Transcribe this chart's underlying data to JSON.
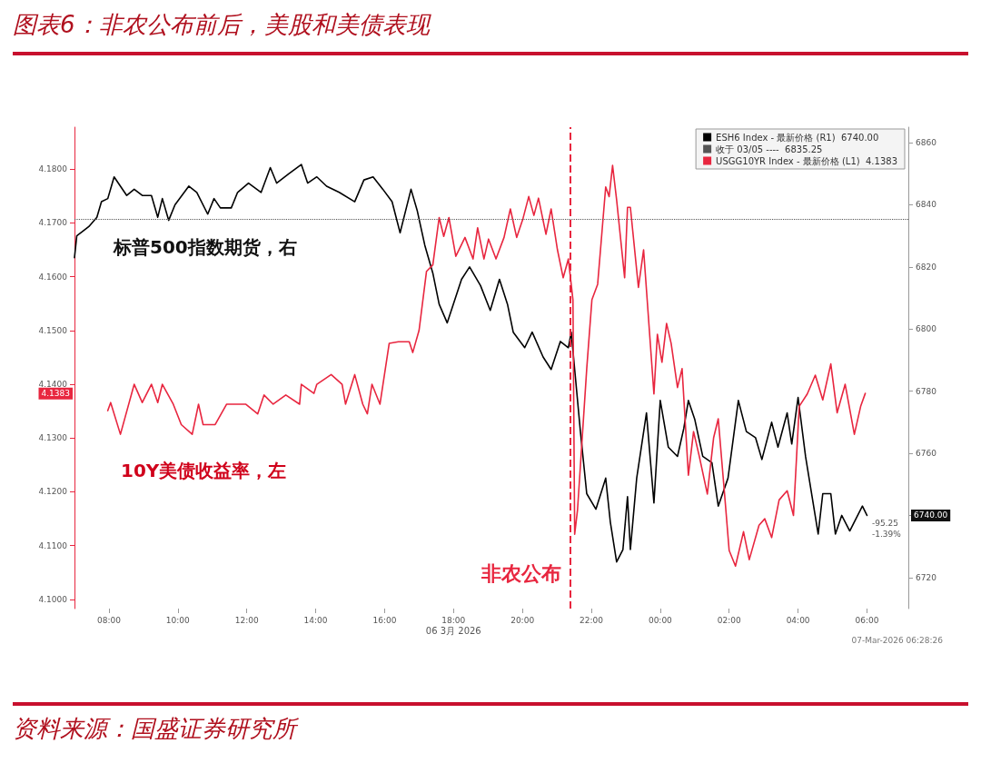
{
  "chart_data": {
    "type": "line",
    "title": "图表6：非农公布前后，美股和美债表现",
    "annotations": [
      "标普500指数期货，右",
      "10Y美债收益率，左",
      "06 3月 2026",
      "4.1383",
      "6740.00",
      "-95.25",
      "-1.39%",
      "07-Mar-2026 06:28:26",
      "资料来源：国盛证券研究所"
    ],
    "xlim": [
      "2026-03-05T07:00",
      "2026-03-06T07:12"
    ],
    "xticks": [
      {
        "value": "2026-03-05T08:00",
        "label": "08:00"
      },
      {
        "value": "2026-03-05T10:00",
        "label": "10:00"
      },
      {
        "value": "2026-03-05T12:00",
        "label": "12:00"
      },
      {
        "value": "2026-03-05T14:00",
        "label": "14:00"
      },
      {
        "value": "2026-03-05T16:00",
        "label": "16:00"
      },
      {
        "value": "2026-03-05T18:00",
        "label": "18:00"
      },
      {
        "value": "2026-03-05T20:00",
        "label": "20:00"
      },
      {
        "value": "2026-03-05T22:00",
        "label": "22:00"
      },
      {
        "value": "2026-03-06T00:00",
        "label": "00:00"
      },
      {
        "value": "2026-03-06T02:00",
        "label": "02:00"
      },
      {
        "value": "2026-03-06T04:00",
        "label": "04:00"
      },
      {
        "value": "2026-03-06T06:00",
        "label": "06:00"
      }
    ],
    "ylim": [
      4.0983,
      4.1878
    ],
    "yticks": [
      {
        "value": 4.1,
        "label": "4.1000"
      },
      {
        "value": 4.11,
        "label": "4.1100"
      },
      {
        "value": 4.12,
        "label": "4.1200"
      },
      {
        "value": 4.13,
        "label": "4.1300"
      },
      {
        "value": 4.14,
        "label": "4.1400"
      },
      {
        "value": 4.15,
        "label": "4.1500"
      },
      {
        "value": 4.16,
        "label": "4.1600"
      },
      {
        "value": 4.17,
        "label": "4.1700"
      },
      {
        "value": 4.18,
        "label": "4.1800"
      }
    ],
    "y2lim": [
      6710,
      6865
    ],
    "y2ticks": [
      6720,
      {
        "value": 6740,
        "label": null
      },
      6760,
      6780,
      6800,
      6820,
      6840,
      6860
    ],
    "legend": "top right",
    "marker": "none",
    "line_style": "solid",
    "ref_lines": [
      {
        "axis": "y2",
        "value": 6835.25,
        "label": "收于 03/05 ----  6835.25",
        "color": "#555555",
        "line_style": "dotted"
      },
      {
        "axis": "x",
        "value": "2026-03-05T21:24",
        "label": "非农公布",
        "color": "#e8263f",
        "line_style": "dashed"
      }
    ],
    "series": [
      {
        "name": "ESH6 Index - 最新价格 (R1)  6740.00",
        "color": "#000000",
        "axis": "y2",
        "x": [
          "2026-03-05T07:00",
          "2026-03-05T07:04",
          "2026-03-05T07:25",
          "2026-03-05T07:39",
          "2026-03-05T07:47",
          "2026-03-05T07:58",
          "2026-03-05T08:09",
          "2026-03-05T08:31",
          "2026-03-05T08:44",
          "2026-03-05T08:58",
          "2026-03-05T09:14",
          "2026-03-05T09:25",
          "2026-03-05T09:33",
          "2026-03-05T09:44",
          "2026-03-05T09:55",
          "2026-03-05T10:19",
          "2026-03-05T10:33",
          "2026-03-05T10:52",
          "2026-03-05T11:03",
          "2026-03-05T11:14",
          "2026-03-05T11:33",
          "2026-03-05T11:44",
          "2026-03-05T12:03",
          "2026-03-05T12:25",
          "2026-03-05T12:41",
          "2026-03-05T12:52",
          "2026-03-05T13:13",
          "2026-03-05T13:35",
          "2026-03-05T13:46",
          "2026-03-05T14:02",
          "2026-03-05T14:19",
          "2026-03-05T14:41",
          "2026-03-05T15:08",
          "2026-03-05T15:24",
          "2026-03-05T15:40",
          "2026-03-05T15:57",
          "2026-03-05T16:13",
          "2026-03-05T16:27",
          "2026-03-05T16:46",
          "2026-03-05T16:57",
          "2026-03-05T17:10",
          "2026-03-05T17:24",
          "2026-03-05T17:35",
          "2026-03-05T17:49",
          "2026-03-05T17:58",
          "2026-03-05T18:14",
          "2026-03-05T18:28",
          "2026-03-05T18:47",
          "2026-03-05T19:04",
          "2026-03-05T19:20",
          "2026-03-05T19:34",
          "2026-03-05T19:44",
          "2026-03-05T20:04",
          "2026-03-05T20:17",
          "2026-03-05T20:36",
          "2026-03-05T20:50",
          "2026-03-05T21:06",
          "2026-03-05T21:20",
          "2026-03-05T21:25",
          "2026-03-05T21:31",
          "2026-03-05T21:41",
          "2026-03-05T21:52",
          "2026-03-05T22:08",
          "2026-03-05T22:25",
          "2026-03-05T22:33",
          "2026-03-05T22:44",
          "2026-03-05T22:55",
          "2026-03-05T23:03",
          "2026-03-05T23:08",
          "2026-03-05T23:19",
          "2026-03-05T23:36",
          "2026-03-05T23:49",
          "2026-03-06T00:00",
          "2026-03-06T00:14",
          "2026-03-06T00:30",
          "2026-03-06T00:41",
          "2026-03-06T00:49",
          "2026-03-06T01:00",
          "2026-03-06T01:14",
          "2026-03-06T01:30",
          "2026-03-06T01:41",
          "2026-03-06T01:58",
          "2026-03-06T02:16",
          "2026-03-06T02:30",
          "2026-03-06T02:46",
          "2026-03-06T02:57",
          "2026-03-06T03:14",
          "2026-03-06T03:25",
          "2026-03-06T03:41",
          "2026-03-06T03:49",
          "2026-03-06T04:00",
          "2026-03-06T04:13",
          "2026-03-06T04:35",
          "2026-03-06T04:43",
          "2026-03-06T04:57",
          "2026-03-06T05:05",
          "2026-03-06T05:16",
          "2026-03-06T05:30",
          "2026-03-06T05:52",
          "2026-03-06T06:00"
        ],
        "values": [
          6823,
          6830,
          6833,
          6836,
          6841,
          6842,
          6849,
          6843,
          6845,
          6843,
          6843,
          6836,
          6842,
          6835,
          6840,
          6846,
          6844,
          6837,
          6842,
          6839,
          6839,
          6844,
          6847,
          6844,
          6852,
          6847,
          6850,
          6853,
          6847,
          6849,
          6846,
          6844,
          6841,
          6848,
          6849,
          6845,
          6841,
          6831,
          6845,
          6838,
          6827,
          6818,
          6808,
          6802,
          6807,
          6816,
          6820,
          6814,
          6806,
          6816,
          6808,
          6799,
          6794,
          6799,
          6791,
          6787,
          6796,
          6794,
          6799,
          6787,
          6767,
          6747,
          6742,
          6752,
          6738,
          6725,
          6729,
          6746,
          6729,
          6752,
          6773,
          6744,
          6777,
          6762,
          6759,
          6768,
          6777,
          6771,
          6759,
          6757,
          6743,
          6752,
          6777,
          6767,
          6765,
          6758,
          6770,
          6762,
          6773,
          6763,
          6778,
          6759,
          6734,
          6747,
          6747,
          6734,
          6740,
          6735,
          6743,
          6740
        ]
      },
      {
        "name": "USGG10YR Index - 最新价格 (L1)  4.1383",
        "color": "#e8263f",
        "axis": "y",
        "x": [
          "2026-03-05T07:58",
          "2026-03-05T08:03",
          "2026-03-05T08:20",
          "2026-03-05T08:44",
          "2026-03-05T08:58",
          "2026-03-05T09:14",
          "2026-03-05T09:25",
          "2026-03-05T09:33",
          "2026-03-05T09:52",
          "2026-03-05T10:06",
          "2026-03-05T10:25",
          "2026-03-05T10:36",
          "2026-03-05T10:44",
          "2026-03-05T11:05",
          "2026-03-05T11:25",
          "2026-03-05T11:58",
          "2026-03-05T12:19",
          "2026-03-05T12:30",
          "2026-03-05T12:46",
          "2026-03-05T13:08",
          "2026-03-05T13:32",
          "2026-03-05T13:35",
          "2026-03-05T13:57",
          "2026-03-05T14:02",
          "2026-03-05T14:27",
          "2026-03-05T14:46",
          "2026-03-05T14:52",
          "2026-03-05T15:08",
          "2026-03-05T15:22",
          "2026-03-05T15:30",
          "2026-03-05T15:38",
          "2026-03-05T15:52",
          "2026-03-05T16:08",
          "2026-03-05T16:24",
          "2026-03-05T16:43",
          "2026-03-05T16:49",
          "2026-03-05T17:00",
          "2026-03-05T17:13",
          "2026-03-05T17:24",
          "2026-03-05T17:35",
          "2026-03-05T17:43",
          "2026-03-05T17:52",
          "2026-03-05T18:04",
          "2026-03-05T18:20",
          "2026-03-05T18:34",
          "2026-03-05T18:42",
          "2026-03-05T18:53",
          "2026-03-05T19:01",
          "2026-03-05T19:14",
          "2026-03-05T19:28",
          "2026-03-05T19:39",
          "2026-03-05T19:50",
          "2026-03-05T20:01",
          "2026-03-05T20:11",
          "2026-03-05T20:20",
          "2026-03-05T20:28",
          "2026-03-05T20:41",
          "2026-03-05T20:50",
          "2026-03-05T21:01",
          "2026-03-05T21:11",
          "2026-03-05T21:20",
          "2026-03-05T21:28",
          "2026-03-05T21:31",
          "2026-03-05T21:36",
          "2026-03-05T21:41",
          "2026-03-05T21:52",
          "2026-03-05T22:01",
          "2026-03-05T22:11",
          "2026-03-05T22:25",
          "2026-03-05T22:31",
          "2026-03-05T22:37",
          "2026-03-05T22:44",
          "2026-03-05T22:58",
          "2026-03-05T23:03",
          "2026-03-05T23:08",
          "2026-03-05T23:22",
          "2026-03-05T23:31",
          "2026-03-05T23:49",
          "2026-03-05T23:55",
          "2026-03-06T00:03",
          "2026-03-06T00:11",
          "2026-03-06T00:19",
          "2026-03-06T00:30",
          "2026-03-06T00:38",
          "2026-03-06T00:49",
          "2026-03-06T00:58",
          "2026-03-06T01:08",
          "2026-03-06T01:22",
          "2026-03-06T01:33",
          "2026-03-06T01:41",
          "2026-03-06T01:52",
          "2026-03-06T02:00",
          "2026-03-06T02:11",
          "2026-03-06T02:25",
          "2026-03-06T02:35",
          "2026-03-06T02:52",
          "2026-03-06T03:02",
          "2026-03-06T03:14",
          "2026-03-06T03:27",
          "2026-03-06T03:41",
          "2026-03-06T03:52",
          "2026-03-06T04:02",
          "2026-03-06T04:16",
          "2026-03-06T04:30",
          "2026-03-06T04:43",
          "2026-03-06T04:57",
          "2026-03-06T05:08",
          "2026-03-06T05:22",
          "2026-03-06T05:38",
          "2026-03-06T05:49",
          "2026-03-06T05:57"
        ],
        "values": [
          4.1351,
          4.1366,
          4.1307,
          4.14,
          4.1366,
          4.14,
          4.1366,
          4.14,
          4.1363,
          4.1325,
          4.1307,
          4.1363,
          4.1325,
          4.1325,
          4.1363,
          4.1363,
          4.1345,
          4.138,
          4.1363,
          4.138,
          4.1363,
          4.14,
          4.1383,
          4.14,
          4.1418,
          4.14,
          4.1363,
          4.1418,
          4.1363,
          4.1345,
          4.14,
          4.1363,
          4.1476,
          4.1479,
          4.1479,
          4.1459,
          4.15,
          4.161,
          4.1622,
          4.171,
          4.1675,
          4.171,
          4.1638,
          4.1673,
          4.1633,
          4.1691,
          4.1633,
          4.167,
          4.1633,
          4.1673,
          4.1726,
          4.1673,
          4.1708,
          4.1749,
          4.1714,
          4.1746,
          4.1679,
          4.1726,
          4.165,
          4.1598,
          4.1633,
          4.1557,
          4.1121,
          4.1167,
          4.1249,
          4.1429,
          4.1557,
          4.1586,
          4.1767,
          4.1749,
          4.1807,
          4.1743,
          4.1598,
          4.1729,
          4.1729,
          4.158,
          4.165,
          4.1382,
          4.1493,
          4.1441,
          4.1513,
          4.1476,
          4.1394,
          4.1429,
          4.1231,
          4.1312,
          4.1266,
          4.1196,
          4.1301,
          4.1336,
          4.1196,
          4.1091,
          4.1062,
          4.1126,
          4.1074,
          4.1138,
          4.115,
          4.1115,
          4.1185,
          4.1202,
          4.1156,
          4.1359,
          4.1382,
          4.1417,
          4.1371,
          4.1438,
          4.1347,
          4.14,
          4.1307,
          4.1359,
          4.1383
        ]
      }
    ]
  }
}
